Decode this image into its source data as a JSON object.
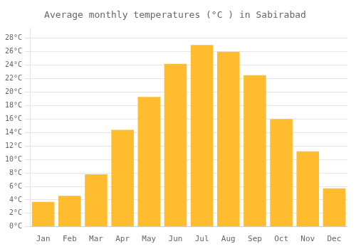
{
  "chart_data": {
    "type": "bar",
    "title": "Average monthly temperatures (°C ) in Sabirabad",
    "categories": [
      "Jan",
      "Feb",
      "Mar",
      "Apr",
      "May",
      "Jun",
      "Jul",
      "Aug",
      "Sep",
      "Oct",
      "Nov",
      "Dec"
    ],
    "values": [
      3.7,
      4.6,
      7.8,
      14.4,
      19.3,
      24.2,
      27.0,
      26.0,
      22.5,
      16.0,
      11.2,
      5.7
    ],
    "color": "#FFBC2E",
    "ylim": [
      0,
      29.5
    ],
    "yticks": [
      {
        "value": 0,
        "label": "0°C"
      },
      {
        "value": 2,
        "label": "2°C"
      },
      {
        "value": 4,
        "label": "4°C"
      },
      {
        "value": 6,
        "label": "6°C"
      },
      {
        "value": 8,
        "label": "8°C"
      },
      {
        "value": 10,
        "label": "10°C"
      },
      {
        "value": 12,
        "label": "12°C"
      },
      {
        "value": 14,
        "label": "14°C"
      },
      {
        "value": 16,
        "label": "16°C"
      },
      {
        "value": 18,
        "label": "18°C"
      },
      {
        "value": 20,
        "label": "20°C"
      },
      {
        "value": 22,
        "label": "22°C"
      },
      {
        "value": 24,
        "label": "24°C"
      },
      {
        "value": 26,
        "label": "26°C"
      },
      {
        "value": 28,
        "label": "28°C"
      }
    ],
    "grid": true
  }
}
